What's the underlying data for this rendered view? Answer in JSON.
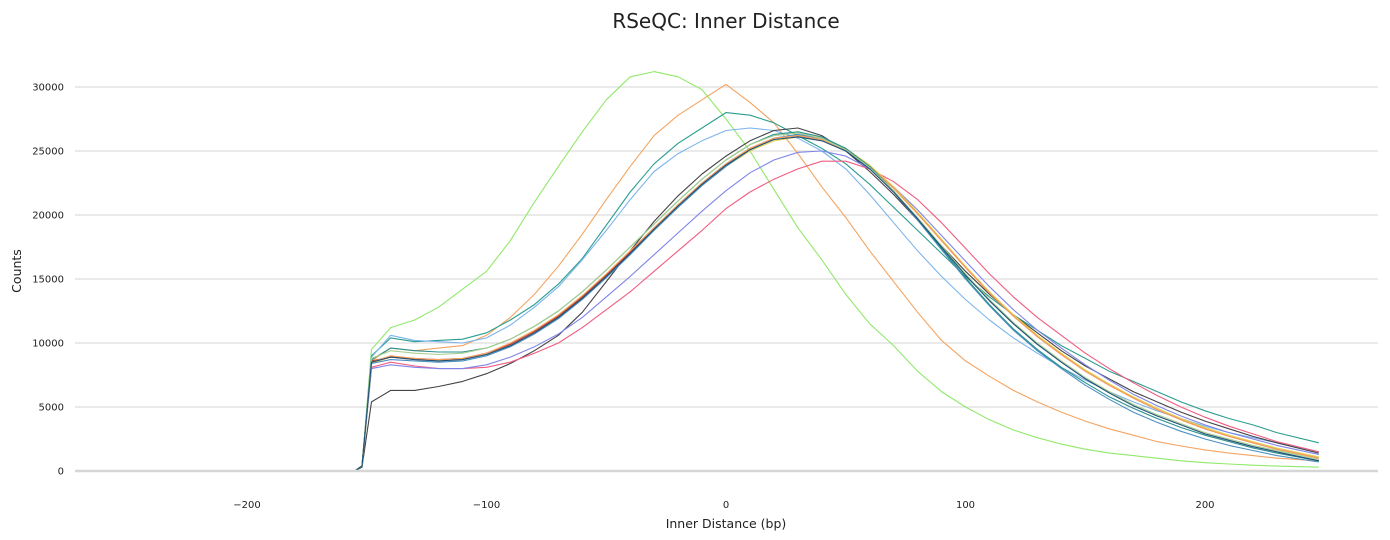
{
  "chart_data": {
    "type": "line",
    "title": "RSeQC: Inner Distance",
    "xlabel": "Inner Distance (bp)",
    "ylabel": "Counts",
    "xlim": [
      -250,
      250
    ],
    "ylim": [
      0,
      32500
    ],
    "xticks": [
      -200,
      -100,
      0,
      100,
      200
    ],
    "yticks": [
      0,
      5000,
      10000,
      15000,
      20000,
      25000,
      30000
    ],
    "grid": true,
    "legend": "none",
    "x": [
      -247.5,
      -155,
      -152,
      -148,
      -140,
      -130,
      -120,
      -110,
      -100,
      -90,
      -80,
      -70,
      -60,
      -50,
      -40,
      -30,
      -20,
      -10,
      0,
      10,
      20,
      30,
      40,
      50,
      60,
      70,
      80,
      90,
      100,
      110,
      120,
      130,
      140,
      150,
      160,
      170,
      180,
      190,
      200,
      210,
      220,
      230,
      247.5
    ],
    "series": [
      {
        "color": "#90e96a",
        "values": [
          0,
          0,
          400,
          9500,
          11200,
          11800,
          12800,
          14200,
          15600,
          18000,
          21000,
          23800,
          26500,
          29000,
          30800,
          31200,
          30800,
          29800,
          27500,
          25000,
          22000,
          19000,
          16500,
          13800,
          11500,
          9800,
          7800,
          6200,
          5000,
          4000,
          3200,
          2600,
          2100,
          1700,
          1400,
          1200,
          1000,
          800,
          650,
          550,
          450,
          380,
          300
        ]
      },
      {
        "color": "#f4a460",
        "values": [
          0,
          0,
          400,
          8600,
          9600,
          9400,
          9600,
          9800,
          10600,
          12000,
          13800,
          16000,
          18500,
          21200,
          23800,
          26200,
          27800,
          29000,
          30200,
          28800,
          27200,
          24800,
          22200,
          19800,
          17200,
          14800,
          12400,
          10200,
          8600,
          7400,
          6300,
          5400,
          4600,
          3900,
          3300,
          2800,
          2300,
          1950,
          1650,
          1400,
          1200,
          1000,
          800
        ]
      },
      {
        "color": "#2a9d8f",
        "values": [
          0,
          0,
          400,
          9000,
          10400,
          10100,
          10200,
          10300,
          10800,
          11800,
          13000,
          14600,
          16600,
          19200,
          21800,
          24000,
          25600,
          26800,
          28000,
          27800,
          27200,
          26200,
          25200,
          24000,
          22400,
          20600,
          18800,
          17000,
          15200,
          13600,
          12200,
          11000,
          9800,
          8800,
          7800,
          7000,
          6200,
          5400,
          4700,
          4100,
          3600,
          3000,
          2200
        ]
      },
      {
        "color": "#7cb5ec",
        "values": [
          0,
          0,
          400,
          8900,
          10600,
          10200,
          10100,
          10000,
          10400,
          11400,
          12800,
          14400,
          16500,
          18800,
          21200,
          23400,
          24800,
          25800,
          26600,
          26800,
          26600,
          26000,
          25000,
          23600,
          21600,
          19400,
          17200,
          15200,
          13400,
          11800,
          10400,
          9200,
          8100,
          7100,
          6200,
          5400,
          4700,
          4100,
          3500,
          3000,
          2600,
          2200,
          1500
        ]
      },
      {
        "color": "#434348",
        "values": [
          0,
          0,
          300,
          5400,
          6300,
          6300,
          6600,
          7000,
          7600,
          8400,
          9400,
          10600,
          12400,
          14800,
          17200,
          19500,
          21500,
          23200,
          24600,
          25800,
          26600,
          26800,
          26200,
          25000,
          23400,
          21600,
          19600,
          17600,
          15600,
          13800,
          12200,
          10800,
          9400,
          8200,
          7200,
          6200,
          5400,
          4600,
          3900,
          3300,
          2700,
          2200,
          1400
        ]
      },
      {
        "color": "#f15c80",
        "values": [
          0,
          0,
          400,
          8100,
          8500,
          8200,
          8000,
          8000,
          8100,
          8500,
          9200,
          10000,
          11200,
          12600,
          14000,
          15600,
          17200,
          18800,
          20500,
          21800,
          22800,
          23600,
          24200,
          24200,
          23600,
          22600,
          21200,
          19400,
          17400,
          15400,
          13600,
          12000,
          10600,
          9200,
          8000,
          6900,
          5900,
          5000,
          4200,
          3500,
          2900,
          2300,
          1500
        ]
      },
      {
        "color": "#8085e9",
        "values": [
          0,
          0,
          400,
          8000,
          8300,
          8100,
          8000,
          8000,
          8300,
          8900,
          9700,
          10700,
          12000,
          13600,
          15200,
          16900,
          18600,
          20300,
          21900,
          23300,
          24300,
          24900,
          25000,
          24600,
          23600,
          22200,
          20400,
          18400,
          16400,
          14400,
          12600,
          11000,
          9600,
          8300,
          7100,
          6000,
          5100,
          4300,
          3600,
          3000,
          2500,
          2000,
          1300
        ]
      },
      {
        "color": "#e4d354",
        "values": [
          0,
          0,
          400,
          8400,
          8900,
          8700,
          8600,
          8700,
          9100,
          9800,
          10800,
          12000,
          13500,
          15200,
          17000,
          18800,
          20600,
          22300,
          23800,
          25000,
          25800,
          26100,
          25900,
          25200,
          23900,
          22200,
          20200,
          18100,
          16000,
          14000,
          12200,
          10600,
          9200,
          7900,
          6800,
          5800,
          4900,
          4100,
          3400,
          2800,
          2300,
          1800,
          1100
        ]
      },
      {
        "color": "#c0392b",
        "values": [
          0,
          0,
          400,
          8600,
          8900,
          8800,
          8700,
          8800,
          9200,
          9900,
          10900,
          12100,
          13600,
          15300,
          17100,
          19000,
          20800,
          22500,
          24000,
          25200,
          26000,
          26200,
          25900,
          25100,
          23800,
          22100,
          20100,
          18000,
          15900,
          13900,
          12100,
          10500,
          9100,
          7800,
          6700,
          5700,
          4800,
          4000,
          3300,
          2700,
          2200,
          1700,
          1000
        ]
      },
      {
        "color": "#4a90c2",
        "values": [
          0,
          0,
          400,
          8400,
          8700,
          8600,
          8500,
          8600,
          9000,
          9700,
          10700,
          11900,
          13400,
          15100,
          16900,
          18800,
          20600,
          22300,
          23800,
          25100,
          26000,
          26300,
          26000,
          25200,
          23700,
          21800,
          19600,
          17300,
          15000,
          12900,
          11000,
          9400,
          8000,
          6700,
          5600,
          4600,
          3800,
          3100,
          2500,
          2000,
          1600,
          1200,
          700
        ]
      },
      {
        "color": "#f7a35c",
        "values": [
          0,
          0,
          400,
          8500,
          9000,
          8800,
          8700,
          8800,
          9200,
          10000,
          11000,
          12200,
          13700,
          15400,
          17200,
          19000,
          20800,
          22500,
          24000,
          25200,
          26000,
          26200,
          25900,
          25100,
          23800,
          22100,
          20100,
          18000,
          15900,
          13900,
          12100,
          10500,
          9100,
          7800,
          6700,
          5700,
          4800,
          4000,
          3300,
          2700,
          2200,
          1700,
          1000
        ]
      },
      {
        "color": "#2b908f",
        "values": [
          0,
          0,
          400,
          8700,
          9600,
          9400,
          9300,
          9300,
          9600,
          10300,
          11300,
          12500,
          14000,
          15700,
          17500,
          19300,
          21100,
          22800,
          24300,
          25500,
          26300,
          26500,
          26100,
          25200,
          23800,
          21900,
          19700,
          17400,
          15100,
          13000,
          11100,
          9500,
          8100,
          6900,
          5800,
          4900,
          4100,
          3400,
          2800,
          2300,
          1800,
          1400,
          800
        ]
      },
      {
        "color": "#a8d08d",
        "values": [
          0,
          0,
          400,
          8800,
          9400,
          9200,
          9100,
          9200,
          9600,
          10300,
          11300,
          12500,
          14000,
          15700,
          17500,
          19300,
          21100,
          22800,
          24300,
          25500,
          26200,
          26400,
          26000,
          25100,
          23700,
          21900,
          19800,
          17600,
          15400,
          13400,
          11600,
          10000,
          8600,
          7300,
          6200,
          5200,
          4400,
          3700,
          3000,
          2500,
          2000,
          1600,
          900
        ]
      },
      {
        "color": "#1f4e79",
        "values": [
          0,
          0,
          400,
          8500,
          8900,
          8700,
          8600,
          8700,
          9100,
          9800,
          10800,
          12000,
          13500,
          15200,
          17000,
          18900,
          20700,
          22400,
          23900,
          25100,
          25900,
          26100,
          25800,
          25000,
          23600,
          21800,
          19700,
          17500,
          15300,
          13300,
          11500,
          9900,
          8500,
          7200,
          6100,
          5100,
          4300,
          3600,
          2900,
          2400,
          1900,
          1500,
          800
        ]
      }
    ]
  }
}
